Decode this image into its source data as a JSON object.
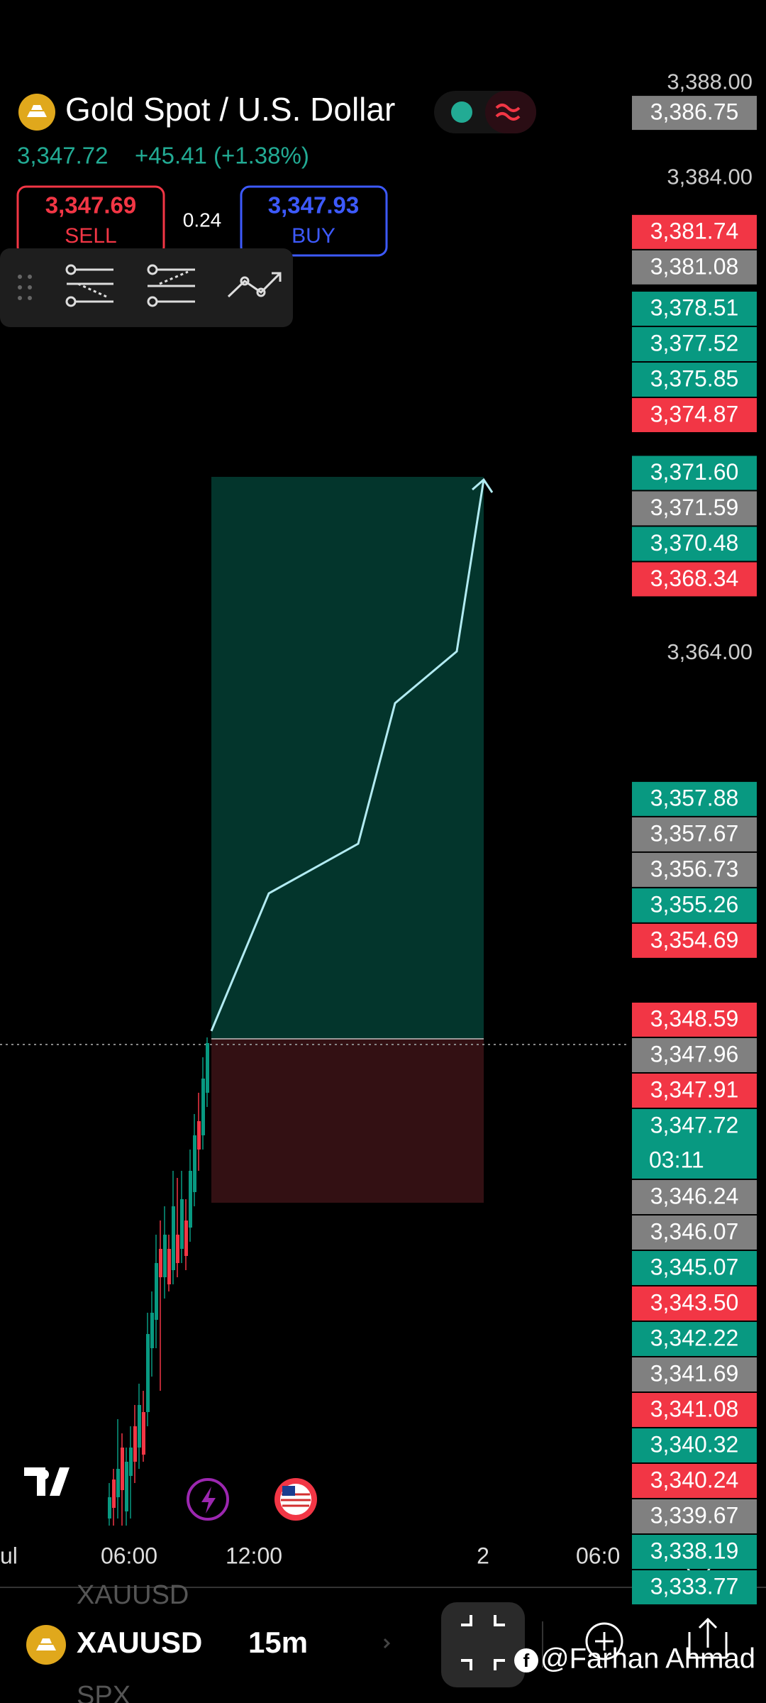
{
  "header": {
    "title": "Gold Spot / U.S. Dollar",
    "price": "3,347.72",
    "change": "+45.41 (+1.38%)",
    "sell": {
      "price": "3,347.69",
      "label": "SELL"
    },
    "spread": "0.24",
    "buy": {
      "price": "3,347.93",
      "label": "BUY"
    }
  },
  "chart_data": {
    "type": "price-axis",
    "ylim": [
      3327,
      3391.5
    ],
    "yticks": [
      {
        "value": 3388,
        "label": "3,388.00"
      },
      {
        "value": 3384,
        "label": "3,384.00"
      },
      {
        "value": 3364,
        "label": "3,364.00"
      }
    ],
    "price_labels": {
      "values": [
        3386.75,
        3381.74,
        3381.08,
        3378.51,
        3377.52,
        3375.85,
        3374.87,
        3371.6,
        3371.59,
        3370.48,
        3368.34,
        3357.88,
        3357.67,
        3356.73,
        3355.26,
        3354.69,
        3348.59,
        3347.96,
        3347.91,
        3346.24,
        3346.07,
        3345.07,
        3343.5,
        3342.22,
        3341.69,
        3341.08,
        3340.32,
        3340.24,
        3339.67,
        3338.19,
        3333.77
      ],
      "value_labels": [
        "3,386.75",
        "3,381.74",
        "3,381.08",
        "3,378.51",
        "3,377.52",
        "3,375.85",
        "3,374.87",
        "3,371.60",
        "3,371.59",
        "3,370.48",
        "3,368.34",
        "3,357.88",
        "3,357.67",
        "3,356.73",
        "3,355.26",
        "3,354.69",
        "3,348.59",
        "3,347.96",
        "3,347.91",
        "3,346.24",
        "3,346.07",
        "3,345.07",
        "3,343.50",
        "3,342.22",
        "3,341.69",
        "3,341.08",
        "3,340.32",
        "3,340.24",
        "3,339.67",
        "3,338.19",
        "3,333.77"
      ],
      "colors": [
        "#808080",
        "#f23645",
        "#808080",
        "#089981",
        "#089981",
        "#089981",
        "#f23645",
        "#089981",
        "#808080",
        "#089981",
        "#f23645",
        "#089981",
        "#808080",
        "#808080",
        "#089981",
        "#f23645",
        "#f23645",
        "#808080",
        "#f23645",
        "#808080",
        "#808080",
        "#089981",
        "#f23645",
        "#089981",
        "#808080",
        "#f23645",
        "#089981",
        "#f23645",
        "#808080",
        "#089981",
        "#089981"
      ]
    },
    "current_price": {
      "value": 3347.72,
      "value_label": "3,347.72",
      "time": "03:11",
      "color": "#089981"
    },
    "time_labels": [
      "ul",
      "06:00",
      "12:00",
      "2",
      "06:0"
    ]
  },
  "footer": {
    "symbol": "XAUUSD",
    "interval": "15m",
    "watermark": "@Farhan Ahmad",
    "prev_symbol": "XAUUSD",
    "next_symbol": "SPX"
  }
}
